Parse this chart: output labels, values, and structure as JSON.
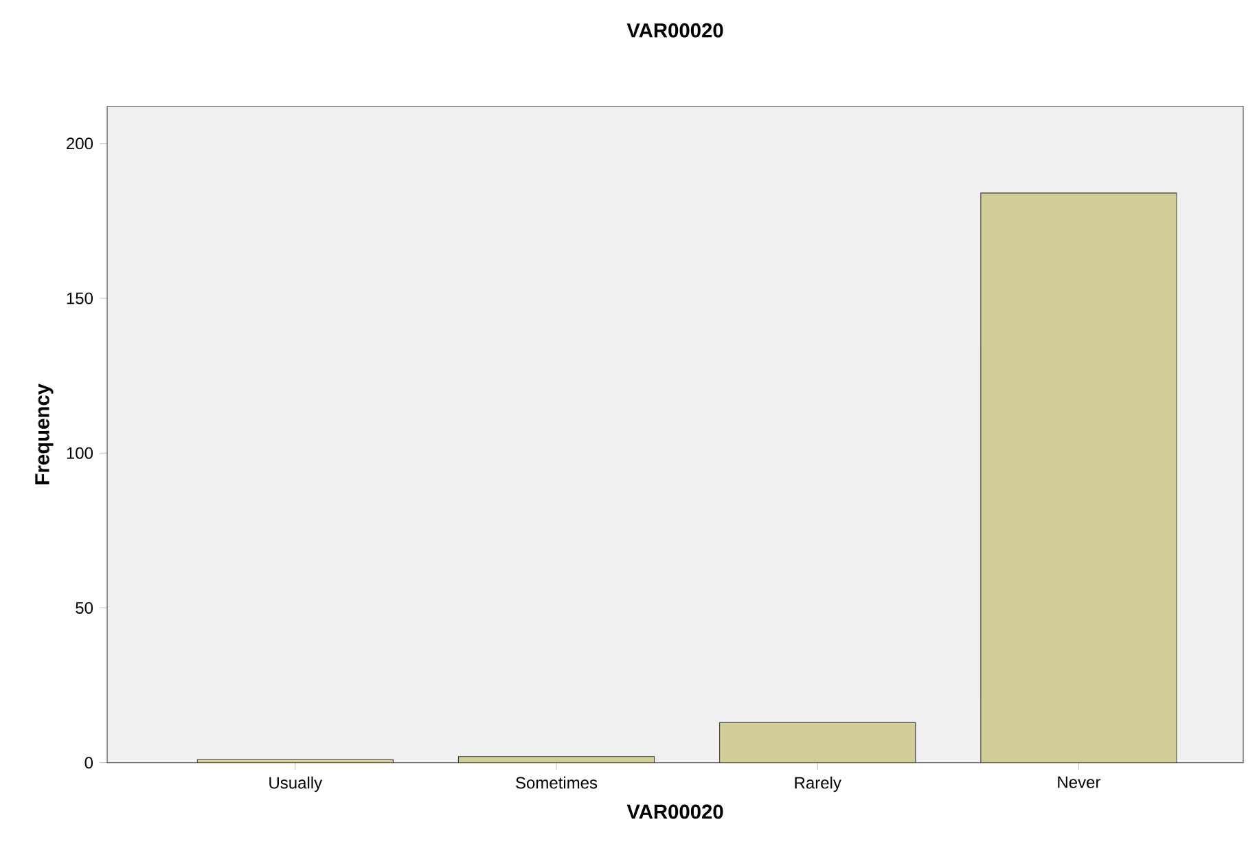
{
  "chart_data": {
    "type": "bar",
    "title": "VAR00020",
    "xlabel": "VAR00020",
    "ylabel": "Frequency",
    "categories": [
      "Usually",
      "Sometimes",
      "Rarely",
      "Never"
    ],
    "values": [
      1,
      2,
      13,
      184
    ],
    "color": "#d3ce98",
    "ylim": [
      0,
      212
    ],
    "yticks": [
      0,
      50,
      100,
      150,
      200
    ],
    "grid": false
  }
}
